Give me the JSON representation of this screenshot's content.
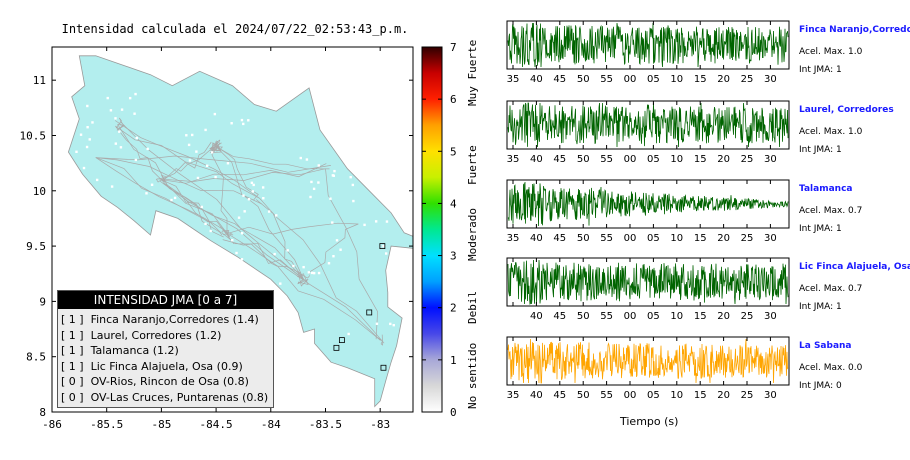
{
  "map": {
    "title": "Intensidad calculada el 2024/07/22_02:53:43_p.m.",
    "xticks": [
      "-86",
      "-85.5",
      "-85",
      "-84.5",
      "-84",
      "-83.5",
      "-83"
    ],
    "xtick_values": [
      -86,
      -85.5,
      -85,
      -84.5,
      -84,
      -83.5,
      -83
    ],
    "yticks": [
      "11",
      "10.5",
      "10",
      "9.5",
      "9",
      "8.5",
      "8"
    ],
    "ytick_values": [
      11,
      10.5,
      10,
      9.5,
      9,
      8.5,
      8
    ],
    "xlim": [
      -86,
      -82.7
    ],
    "ylim": [
      8,
      11.3
    ],
    "land_color": "#b3eeee",
    "road_color": "#aaaaaa"
  },
  "legend": {
    "title": "INTENSIDAD JMA [0 a 7]",
    "items": [
      {
        "level": "[ 1 ]",
        "name": "Finca Naranjo,Corredores (1.4)"
      },
      {
        "level": "[ 1 ]",
        "name": "Laurel, Corredores (1.2)"
      },
      {
        "level": "[ 1 ]",
        "name": "Talamanca (1.2)"
      },
      {
        "level": "[ 1 ]",
        "name": "Lic Finca Alajuela, Osa (0.9)"
      },
      {
        "level": "[ 0 ]",
        "name": "OV-Rios, Rincon de Osa (0.8)"
      },
      {
        "level": "[ 0 ]",
        "name": "OV-Las Cruces, Puntarenas (0.8)"
      }
    ]
  },
  "colorbar": {
    "ticks": [
      "7",
      "6",
      "5",
      "4",
      "3",
      "2",
      "1",
      "0"
    ],
    "tick_values": [
      7,
      6,
      5,
      4,
      3,
      2,
      1,
      0
    ],
    "category_labels": [
      "Muy Fuerte",
      "Fuerte",
      "Moderado",
      "Debil",
      "No sentido"
    ]
  },
  "waveforms": {
    "xlabel": "Tiempo (s)",
    "xticks": [
      "35",
      "40",
      "45",
      "50",
      "55",
      "00",
      "05",
      "10",
      "15",
      "20",
      "25",
      "30"
    ],
    "stations": [
      {
        "name": "Finca Naranjo,Corredor",
        "acel": "Acel. Max. 1.0",
        "jma": "Int JMA: 1",
        "color": "#006400",
        "seed": 3,
        "decay": 0.1,
        "ticks_from": 0
      },
      {
        "name": "Laurel, Corredores",
        "acel": "Acel. Max. 1.0",
        "jma": "Int JMA: 1",
        "color": "#006400",
        "seed": 7,
        "decay": 0.1,
        "ticks_from": 0
      },
      {
        "name": "Talamanca",
        "acel": "Acel. Max. 0.7",
        "jma": "Int JMA: 1",
        "color": "#006400",
        "seed": 11,
        "decay": 0.85,
        "ticks_from": 0
      },
      {
        "name": "Lic Finca Alajuela, Osa",
        "acel": "Acel. Max. 0.7",
        "jma": "Int JMA: 1",
        "color": "#006400",
        "seed": 19,
        "decay": 0.1,
        "ticks_from": 1
      },
      {
        "name": "La Sabana",
        "acel": "Acel. Max. 0.0",
        "jma": "Int JMA: 0",
        "color": "#ffa500",
        "seed": 23,
        "decay": 0.2,
        "ticks_from": 0
      }
    ]
  },
  "chart_data": [
    {
      "type": "map",
      "title": "Intensidad calculada el 2024/07/22_02:53:43_p.m.",
      "xlim": [
        -86,
        -82.7
      ],
      "ylim": [
        8,
        11.3
      ],
      "colorbar_range": [
        0,
        7
      ],
      "legend_title": "INTENSIDAD JMA [0 a 7]",
      "stations": [
        {
          "name": "Finca Naranjo,Corredores",
          "intensity": 1.4,
          "jma_level": 1
        },
        {
          "name": "Laurel, Corredores",
          "intensity": 1.2,
          "jma_level": 1
        },
        {
          "name": "Talamanca",
          "intensity": 1.2,
          "jma_level": 1
        },
        {
          "name": "Lic Finca Alajuela, Osa",
          "intensity": 0.9,
          "jma_level": 1
        },
        {
          "name": "OV-Rios, Rincon de Osa",
          "intensity": 0.8,
          "jma_level": 0
        },
        {
          "name": "OV-Las Cruces, Puntarenas",
          "intensity": 0.8,
          "jma_level": 0
        }
      ]
    },
    {
      "type": "line",
      "xlabel": "Tiempo (s)",
      "series": [
        {
          "name": "Finca Naranjo,Corredor",
          "max_accel": 1.0,
          "jma": 1
        },
        {
          "name": "Laurel, Corredores",
          "max_accel": 1.0,
          "jma": 1
        },
        {
          "name": "Talamanca",
          "max_accel": 0.7,
          "jma": 1
        },
        {
          "name": "Lic Finca Alajuela, Osa",
          "max_accel": 0.7,
          "jma": 1
        },
        {
          "name": "La Sabana",
          "max_accel": 0.0,
          "jma": 0
        }
      ]
    }
  ]
}
